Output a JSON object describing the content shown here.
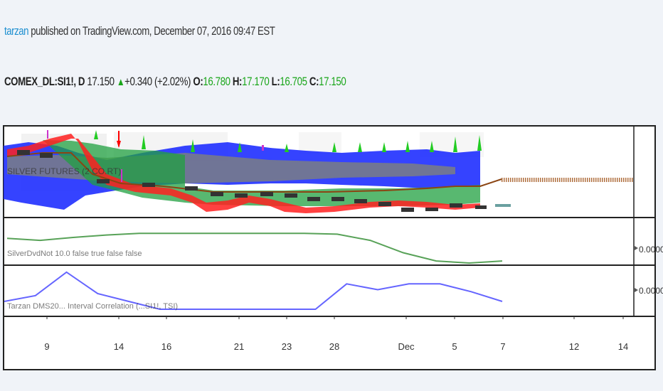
{
  "header": {
    "publisher": "tarzan",
    "published_text": " published on TradingView.com, December 07, 2016 09:47 EST"
  },
  "quote": {
    "symbol": "COMEX_DL:SI1!, D",
    "price": "17.150",
    "arrow": "▲",
    "change": "+0.340 (+2.02%)",
    "o_label": "O:",
    "o": "16.780",
    "h_label": "H:",
    "h": "17.170",
    "l_label": "L:",
    "l": "16.705",
    "c_label": "C:",
    "c": "17.150"
  },
  "panes": {
    "main_label": "SILVER FUTURES (2 CO.RT)",
    "pane2_label": "SilverDvdNot 10.0 false true false false",
    "pane2_value": "0.0000",
    "pane3_label": "Tarzan DMS20... Interval Correlation (...SI1!, TSI)",
    "pane3_value": "0.0000"
  },
  "colors": {
    "blue_band": "#1f2fff",
    "red_band": "#ff2020",
    "green_band": "#20a040",
    "brown_line": "#8b4513",
    "pane2_line": "#2e8b2e",
    "pane3_line": "#4a4aff"
  },
  "chart_data": {
    "type": "line",
    "xaxis_ticks": [
      "9",
      "14",
      "16",
      "21",
      "23",
      "28",
      "Dec",
      "5",
      "7",
      "12",
      "14"
    ],
    "pane2_series": {
      "values": [
        0.6,
        0.55,
        0.62,
        0.68,
        0.72,
        0.72,
        0.72,
        0.72,
        0.72,
        0.72,
        0.7,
        0.55,
        0.25,
        0.05,
        0.0,
        0.05
      ]
    },
    "pane3_series": {
      "values": [
        0.8,
        0.65,
        0.05,
        0.6,
        0.8,
        1.0,
        1.0,
        1.0,
        1.0,
        1.0,
        1.0,
        0.35,
        0.5,
        0.35,
        0.35,
        0.55,
        0.8
      ]
    }
  }
}
